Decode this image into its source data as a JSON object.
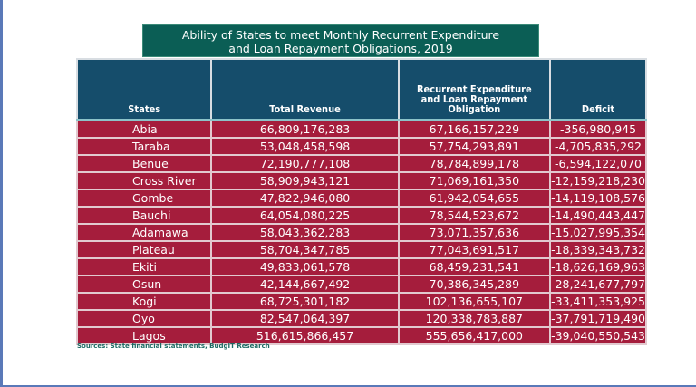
{
  "title_line1": "Ability of States to meet Monthly Recurrent Expenditure",
  "title_line2": "and Loan Repayment  Obligations, 2019",
  "headers": [
    "States",
    "Total Revenue",
    "Recurrent Expenditure and Loan Repayment Obligation",
    "Deficit"
  ],
  "rows": [
    [
      "Abia",
      "66,809,176,283",
      "67,166,157,229",
      "-356,980,945"
    ],
    [
      "Taraba",
      "53,048,458,598",
      "57,754,293,891",
      "-4,705,835,292"
    ],
    [
      "Benue",
      "72,190,777,108",
      "78,784,899,178",
      "-6,594,122,070"
    ],
    [
      "Cross River",
      "58,909,943,121",
      "71,069,161,350",
      "-12,159,218,230"
    ],
    [
      "Gombe",
      "47,822,946,080",
      "61,942,054,655",
      "-14,119,108,576"
    ],
    [
      "Bauchi",
      "64,054,080,225",
      "78,544,523,672",
      "-14,490,443,447"
    ],
    [
      "Adamawa",
      "58,043,362,283",
      "73,071,357,636",
      "-15,027,995,354"
    ],
    [
      "Plateau",
      "58,704,347,785",
      "77,043,691,517",
      "-18,339,343,732"
    ],
    [
      "Ekiti",
      "49,833,061,578",
      "68,459,231,541",
      "-18,626,169,963"
    ],
    [
      "Osun",
      "42,144,667,492",
      "70,386,345,289",
      "-28,241,677,797"
    ],
    [
      "Kogi",
      "68,725,301,182",
      "102,136,655,107",
      "-33,411,353,925"
    ],
    [
      "Oyo",
      "82,547,064,397",
      "120,338,783,887",
      "-37,791,719,490"
    ],
    [
      "Lagos",
      "516,615,866,457",
      "555,656,417,000",
      "-39,040,550,543"
    ]
  ],
  "source": "Sources: State financial statements, BudgIT Research",
  "colors": {
    "title_bg": "#0b5e55",
    "header_bg": "#154d6b",
    "row_bg": "#a51d3c"
  }
}
